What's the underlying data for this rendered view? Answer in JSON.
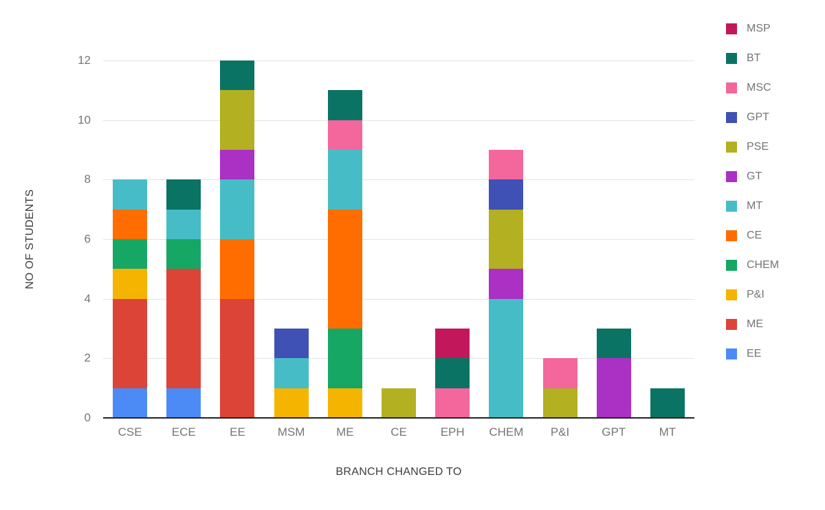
{
  "chart_data": {
    "type": "bar",
    "stacked": true,
    "xlabel": "BRANCH CHANGED TO",
    "ylabel": "NO OF STUDENTS",
    "ylim": [
      0,
      12
    ],
    "yticks": [
      0,
      2,
      4,
      6,
      8,
      10,
      12
    ],
    "grid": true,
    "legend_position": "right",
    "categories": [
      "CSE",
      "ECE",
      "EE",
      "MSM",
      "ME",
      "CE",
      "EPH",
      "CHEM",
      "P&I",
      "GPT",
      "MT"
    ],
    "series": [
      {
        "name": "EE",
        "color": "#4C8BF5",
        "values": [
          1,
          1,
          0,
          0,
          0,
          0,
          0,
          0,
          0,
          0,
          0
        ]
      },
      {
        "name": "ME",
        "color": "#DB4437",
        "values": [
          3,
          4,
          4,
          0,
          0,
          0,
          0,
          0,
          0,
          0,
          0
        ]
      },
      {
        "name": "P&I",
        "color": "#F4B400",
        "values": [
          1,
          0,
          0,
          1,
          1,
          0,
          0,
          0,
          0,
          0,
          0
        ]
      },
      {
        "name": "CHEM",
        "color": "#16A765",
        "values": [
          1,
          1,
          0,
          0,
          2,
          0,
          0,
          0,
          0,
          0,
          0
        ]
      },
      {
        "name": "CE",
        "color": "#FF6D01",
        "values": [
          1,
          0,
          2,
          0,
          4,
          0,
          0,
          0,
          0,
          0,
          0
        ]
      },
      {
        "name": "MT",
        "color": "#46BDC6",
        "values": [
          1,
          1,
          2,
          1,
          2,
          0,
          0,
          4,
          0,
          0,
          0
        ]
      },
      {
        "name": "GT",
        "color": "#AB30C4",
        "values": [
          0,
          0,
          1,
          0,
          0,
          0,
          0,
          1,
          0,
          2,
          0
        ]
      },
      {
        "name": "PSE",
        "color": "#B3B021",
        "values": [
          0,
          0,
          2,
          0,
          0,
          1,
          0,
          2,
          1,
          0,
          0
        ]
      },
      {
        "name": "GPT",
        "color": "#3F51B5",
        "values": [
          0,
          0,
          0,
          1,
          0,
          0,
          0,
          1,
          0,
          0,
          0
        ]
      },
      {
        "name": "MSC",
        "color": "#F4679D",
        "values": [
          0,
          0,
          0,
          0,
          1,
          0,
          1,
          1,
          1,
          0,
          0
        ]
      },
      {
        "name": "BT",
        "color": "#0B7364",
        "values": [
          0,
          1,
          1,
          0,
          1,
          0,
          1,
          0,
          0,
          1,
          1
        ]
      },
      {
        "name": "MSP",
        "color": "#C2185B",
        "values": [
          0,
          0,
          0,
          0,
          0,
          0,
          1,
          0,
          0,
          0,
          0
        ]
      }
    ]
  }
}
